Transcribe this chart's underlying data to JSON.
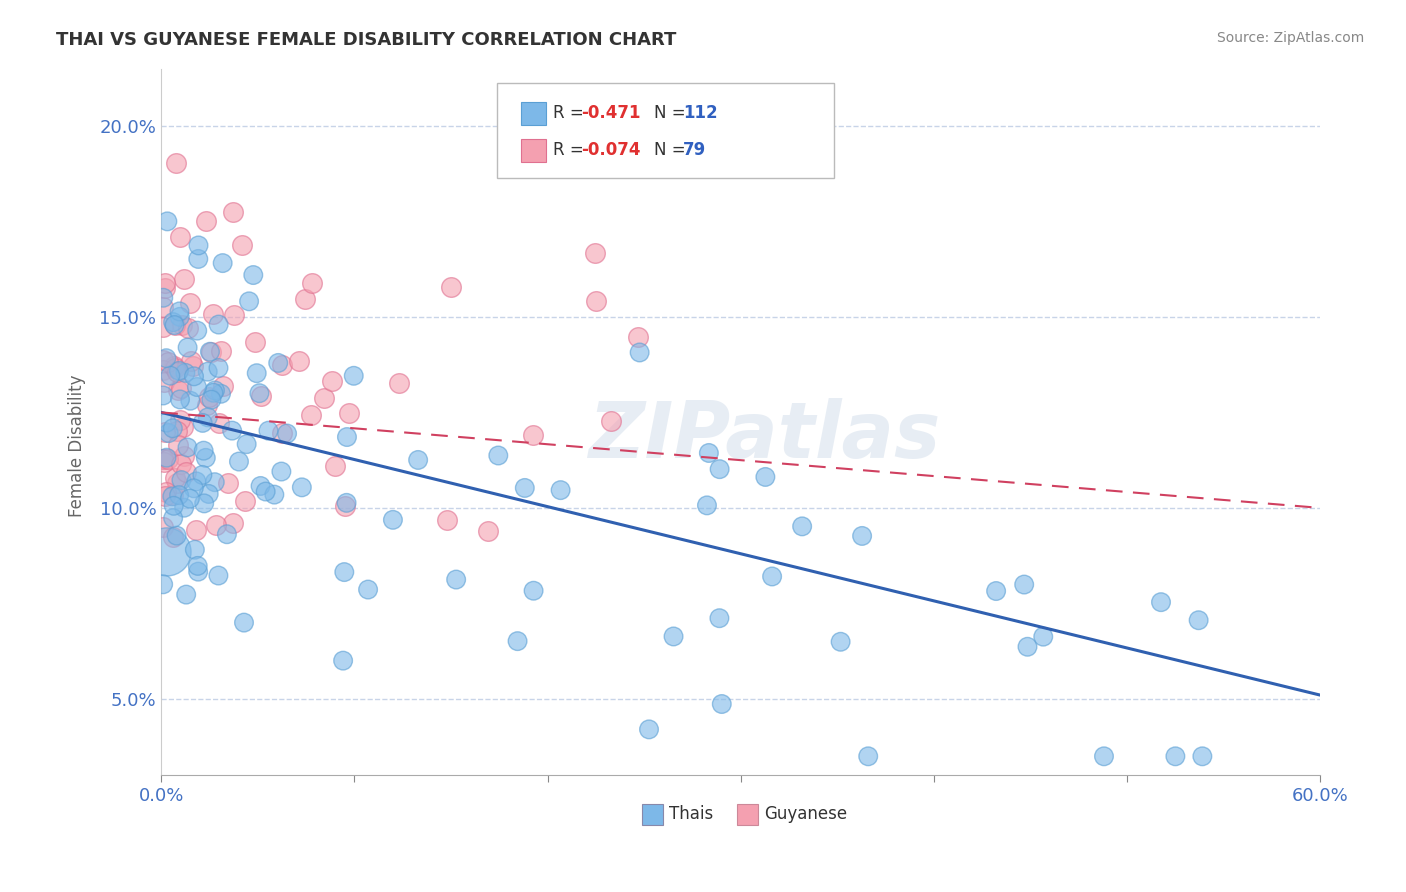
{
  "title": "THAI VS GUYANESE FEMALE DISABILITY CORRELATION CHART",
  "source_text": "Source: ZipAtlas.com",
  "ylabel": "Female Disability",
  "xlim": [
    0.0,
    0.6
  ],
  "ylim": [
    0.03,
    0.215
  ],
  "xticks": [
    0.0,
    0.1,
    0.2,
    0.3,
    0.4,
    0.5,
    0.6
  ],
  "xticklabels": [
    "0.0%",
    "",
    "",
    "",
    "",
    "",
    "60.0%"
  ],
  "yticks": [
    0.05,
    0.1,
    0.15,
    0.2
  ],
  "yticklabels": [
    "5.0%",
    "10.0%",
    "15.0%",
    "20.0%"
  ],
  "thai_color": "#7db8e8",
  "thai_edge_color": "#5a9fd4",
  "guyanese_color": "#f4a0b0",
  "guyanese_edge_color": "#e07090",
  "thai_R": -0.471,
  "thai_N": 112,
  "guyanese_R": -0.074,
  "guyanese_N": 79,
  "thai_line_color": "#3060b0",
  "guy_line_color": "#d04060",
  "background_color": "#ffffff",
  "grid_color": "#c8d4e8",
  "title_color": "#333333",
  "legend_R_color": "#e03030",
  "legend_N_color": "#3060c0",
  "watermark": "ZIPatlas",
  "axis_label_color": "#4472c4"
}
